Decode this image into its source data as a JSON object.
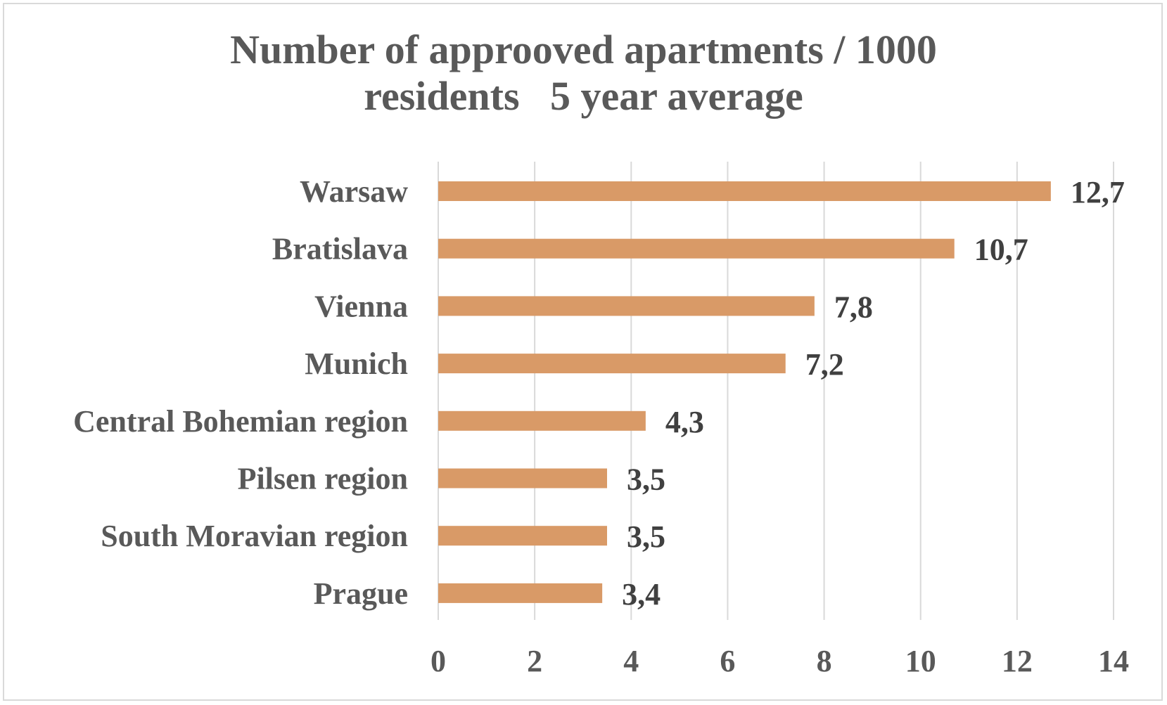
{
  "chart_data": {
    "type": "bar",
    "orientation": "horizontal",
    "title_lines": [
      "Number of approoved apartments / 1000",
      "residents   5 year average"
    ],
    "categories": [
      "Warsaw",
      "Bratislava",
      "Vienna",
      "Munich",
      "Central Bohemian region",
      "Pilsen region",
      "South Moravian region",
      "Prague"
    ],
    "values": [
      12.7,
      10.7,
      7.8,
      7.2,
      4.3,
      3.5,
      3.5,
      3.4
    ],
    "data_labels": [
      "12,7",
      "10,7",
      "7,8",
      "7,2",
      "4,3",
      "3,5",
      "3,5",
      "3,4"
    ],
    "xlim": [
      0,
      14
    ],
    "x_ticks": [
      0,
      2,
      4,
      6,
      8,
      10,
      12,
      14
    ],
    "grid": "vertical",
    "legend": "none",
    "xlabel": "",
    "ylabel": "",
    "bar_color": "#d99a67",
    "grid_color": "#d9d9d9"
  }
}
